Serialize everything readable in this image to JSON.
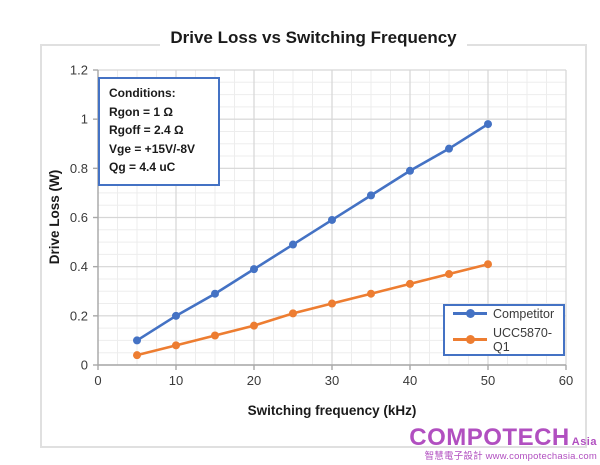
{
  "chart_data": {
    "type": "line",
    "title": "Drive Loss vs Switching Frequency",
    "xlabel": "Switching frequency (kHz)",
    "ylabel": "Drive Loss (W)",
    "xlim": [
      0,
      60
    ],
    "ylim": [
      0,
      1.2
    ],
    "xticks": [
      0,
      10,
      20,
      30,
      40,
      50,
      60
    ],
    "yticks": [
      0,
      0.2,
      0.4,
      0.6,
      0.8,
      1,
      1.2
    ],
    "xtick_labels": [
      "0",
      "10",
      "20",
      "30",
      "40",
      "50",
      "60"
    ],
    "ytick_labels": [
      "0",
      "0.2",
      "0.4",
      "0.6",
      "0.8",
      "1",
      "1.2"
    ],
    "minor_x_step": 2.5,
    "minor_y_step": 0.05,
    "grid": "major+minor",
    "legend_position": "inside bottom-right",
    "x": [
      5,
      10,
      15,
      20,
      25,
      30,
      35,
      40,
      45,
      50
    ],
    "series": [
      {
        "name": "Competitor",
        "color": "#4472C4",
        "values": [
          0.1,
          0.2,
          0.29,
          0.39,
          0.49,
          0.59,
          0.69,
          0.79,
          0.88,
          0.98
        ]
      },
      {
        "name": "UCC5870-Q1",
        "color": "#ED7D31",
        "values": [
          0.04,
          0.08,
          0.12,
          0.16,
          0.21,
          0.25,
          0.29,
          0.33,
          0.37,
          0.41
        ]
      }
    ]
  },
  "conditions": {
    "title": "Conditions:",
    "lines": [
      "Rgon = 1 Ω",
      "Rgoff = 2.4 Ω",
      "Vge = +15V/-8V",
      "Qg = 4.4 uC"
    ]
  },
  "watermark": {
    "brand": "COMPOTECH",
    "region": "Asia",
    "tagline": "智慧電子設計 www.compotechasia.com",
    "color": "#b14fc0"
  },
  "colors": {
    "series_blue": "#4472C4",
    "series_orange": "#ED7D31",
    "box_border": "#4472C4",
    "major_grid": "#d6d6d6",
    "minor_grid": "#ededed",
    "axis_line": "#a8a8a8",
    "tick_text": "#3a3a3a",
    "frame_border": "#e0e0e0"
  }
}
